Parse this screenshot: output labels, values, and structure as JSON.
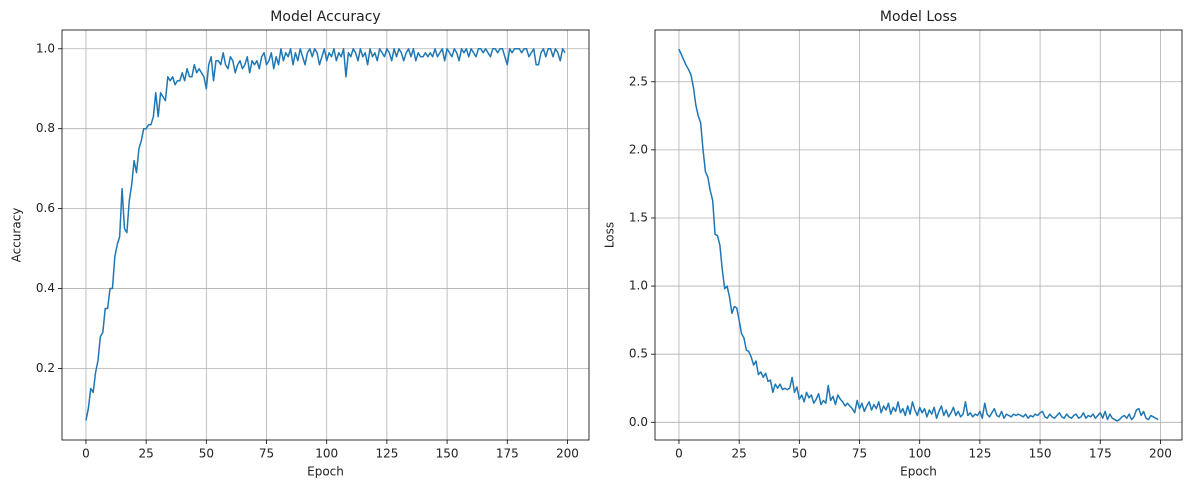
{
  "chart_data": [
    {
      "type": "line",
      "title": "Model Accuracy",
      "xlabel": "Epoch",
      "ylabel": "Accuracy",
      "color": "#1f77b4",
      "grid": true,
      "xlim": [
        -9.95,
        208.95
      ],
      "ylim": [
        0.021,
        1.047
      ],
      "xticks": [
        0,
        25,
        50,
        75,
        100,
        125,
        150,
        175,
        200
      ],
      "yticks": [
        0.2,
        0.4,
        0.6,
        0.8,
        {
          "value": 1,
          "label": "1.0"
        }
      ],
      "x": [
        0,
        1,
        2,
        3,
        4,
        5,
        6,
        7,
        8,
        9,
        10,
        11,
        12,
        13,
        14,
        15,
        16,
        17,
        18,
        19,
        20,
        21,
        22,
        23,
        24,
        25,
        26,
        27,
        28,
        29,
        30,
        31,
        32,
        33,
        34,
        35,
        36,
        37,
        38,
        39,
        40,
        41,
        42,
        43,
        44,
        45,
        46,
        47,
        48,
        49,
        50,
        51,
        52,
        53,
        54,
        55,
        56,
        57,
        58,
        59,
        60,
        61,
        62,
        63,
        64,
        65,
        66,
        67,
        68,
        69,
        70,
        71,
        72,
        73,
        74,
        75,
        76,
        77,
        78,
        79,
        80,
        81,
        82,
        83,
        84,
        85,
        86,
        87,
        88,
        89,
        90,
        91,
        92,
        93,
        94,
        95,
        96,
        97,
        98,
        99,
        100,
        101,
        102,
        103,
        104,
        105,
        106,
        107,
        108,
        109,
        110,
        111,
        112,
        113,
        114,
        115,
        116,
        117,
        118,
        119,
        120,
        121,
        122,
        123,
        124,
        125,
        126,
        127,
        128,
        129,
        130,
        131,
        132,
        133,
        134,
        135,
        136,
        137,
        138,
        139,
        140,
        141,
        142,
        143,
        144,
        145,
        146,
        147,
        148,
        149,
        150,
        151,
        152,
        153,
        154,
        155,
        156,
        157,
        158,
        159,
        160,
        161,
        162,
        163,
        164,
        165,
        166,
        167,
        168,
        169,
        170,
        171,
        172,
        173,
        174,
        175,
        176,
        177,
        178,
        179,
        180,
        181,
        182,
        183,
        184,
        185,
        186,
        187,
        188,
        189,
        190,
        191,
        192,
        193,
        194,
        195,
        196,
        197,
        198,
        199
      ],
      "values": [
        0.07,
        0.1,
        0.15,
        0.14,
        0.19,
        0.22,
        0.28,
        0.29,
        0.35,
        0.35,
        0.4,
        0.4,
        0.48,
        0.51,
        0.53,
        0.65,
        0.55,
        0.54,
        0.62,
        0.66,
        0.72,
        0.69,
        0.75,
        0.77,
        0.8,
        0.8,
        0.81,
        0.81,
        0.83,
        0.89,
        0.83,
        0.89,
        0.88,
        0.87,
        0.93,
        0.92,
        0.93,
        0.91,
        0.92,
        0.92,
        0.94,
        0.92,
        0.95,
        0.93,
        0.93,
        0.96,
        0.94,
        0.95,
        0.94,
        0.93,
        0.9,
        0.96,
        0.98,
        0.92,
        0.97,
        0.97,
        0.96,
        0.99,
        0.96,
        0.95,
        0.98,
        0.97,
        0.94,
        0.96,
        0.97,
        0.95,
        0.96,
        0.98,
        0.94,
        0.97,
        0.96,
        0.97,
        0.95,
        0.98,
        0.99,
        0.96,
        0.97,
        0.99,
        0.95,
        0.98,
        0.96,
        1.0,
        0.97,
        0.99,
        0.98,
        1.0,
        0.96,
        0.99,
        0.97,
        1.0,
        0.98,
        0.96,
        0.99,
        1.0,
        0.98,
        1.0,
        0.99,
        0.96,
        0.98,
        1.0,
        0.97,
        0.99,
        0.98,
        1.0,
        0.97,
        0.99,
        0.98,
        1.0,
        0.93,
        0.99,
        0.98,
        1.0,
        0.99,
        0.97,
        1.0,
        0.98,
        0.99,
        0.96,
        1.0,
        0.98,
        0.99,
        0.97,
        1.0,
        0.99,
        0.98,
        1.0,
        0.99,
        0.97,
        1.0,
        0.98,
        1.0,
        0.99,
        0.97,
        0.99,
        1.0,
        0.98,
        1.0,
        0.97,
        0.99,
        0.98,
        0.98,
        0.99,
        0.98,
        0.99,
        0.98,
        1.0,
        0.98,
        0.99,
        1.0,
        0.97,
        1.0,
        0.99,
        0.98,
        1.0,
        0.99,
        0.97,
        1.0,
        0.99,
        1.0,
        0.98,
        1.0,
        0.99,
        0.98,
        1.0,
        1.0,
        0.99,
        1.0,
        0.99,
        0.98,
        1.0,
        1.0,
        0.99,
        1.0,
        1.0,
        0.98,
        0.96,
        1.0,
        0.99,
        1.0,
        1.0,
        1.0,
        0.99,
        1.0,
        1.0,
        0.98,
        0.99,
        1.0,
        0.96,
        0.96,
        0.99,
        1.0,
        0.98,
        1.0,
        1.0,
        0.98,
        1.0,
        0.99,
        0.97,
        1.0,
        0.99
      ]
    },
    {
      "type": "line",
      "title": "Model Loss",
      "xlabel": "Epoch",
      "ylabel": "Loss",
      "color": "#1f77b4",
      "grid": true,
      "xlim": [
        -9.95,
        208.95
      ],
      "ylim": [
        -0.13,
        2.88
      ],
      "xticks": [
        0,
        25,
        50,
        75,
        100,
        125,
        150,
        175,
        200
      ],
      "yticks": [
        {
          "value": 0,
          "label": "0.0"
        },
        0.5,
        {
          "value": 1,
          "label": "1.0"
        },
        1.5,
        {
          "value": 2,
          "label": "2.0"
        },
        2.5
      ],
      "x": [
        0,
        1,
        2,
        3,
        4,
        5,
        6,
        7,
        8,
        9,
        10,
        11,
        12,
        13,
        14,
        15,
        16,
        17,
        18,
        19,
        20,
        21,
        22,
        23,
        24,
        25,
        26,
        27,
        28,
        29,
        30,
        31,
        32,
        33,
        34,
        35,
        36,
        37,
        38,
        39,
        40,
        41,
        42,
        43,
        44,
        45,
        46,
        47,
        48,
        49,
        50,
        51,
        52,
        53,
        54,
        55,
        56,
        57,
        58,
        59,
        60,
        61,
        62,
        63,
        64,
        65,
        66,
        67,
        68,
        69,
        70,
        71,
        72,
        73,
        74,
        75,
        76,
        77,
        78,
        79,
        80,
        81,
        82,
        83,
        84,
        85,
        86,
        87,
        88,
        89,
        90,
        91,
        92,
        93,
        94,
        95,
        96,
        97,
        98,
        99,
        100,
        101,
        102,
        103,
        104,
        105,
        106,
        107,
        108,
        109,
        110,
        111,
        112,
        113,
        114,
        115,
        116,
        117,
        118,
        119,
        120,
        121,
        122,
        123,
        124,
        125,
        126,
        127,
        128,
        129,
        130,
        131,
        132,
        133,
        134,
        135,
        136,
        137,
        138,
        139,
        140,
        141,
        142,
        143,
        144,
        145,
        146,
        147,
        148,
        149,
        150,
        151,
        152,
        153,
        154,
        155,
        156,
        157,
        158,
        159,
        160,
        161,
        162,
        163,
        164,
        165,
        166,
        167,
        168,
        169,
        170,
        171,
        172,
        173,
        174,
        175,
        176,
        177,
        178,
        179,
        180,
        181,
        182,
        183,
        184,
        185,
        186,
        187,
        188,
        189,
        190,
        191,
        192,
        193,
        194,
        195,
        196,
        197,
        198,
        199
      ],
      "values": [
        2.74,
        2.7,
        2.66,
        2.62,
        2.59,
        2.55,
        2.46,
        2.33,
        2.25,
        2.2,
        2.0,
        1.84,
        1.8,
        1.7,
        1.63,
        1.38,
        1.37,
        1.3,
        1.12,
        0.98,
        1.0,
        0.92,
        0.8,
        0.85,
        0.84,
        0.75,
        0.65,
        0.62,
        0.53,
        0.52,
        0.48,
        0.42,
        0.45,
        0.35,
        0.37,
        0.33,
        0.36,
        0.3,
        0.31,
        0.22,
        0.28,
        0.25,
        0.28,
        0.24,
        0.25,
        0.24,
        0.25,
        0.33,
        0.22,
        0.26,
        0.17,
        0.2,
        0.15,
        0.22,
        0.18,
        0.2,
        0.14,
        0.17,
        0.21,
        0.13,
        0.16,
        0.14,
        0.27,
        0.16,
        0.19,
        0.13,
        0.2,
        0.17,
        0.15,
        0.12,
        0.14,
        0.12,
        0.1,
        0.07,
        0.16,
        0.1,
        0.14,
        0.08,
        0.12,
        0.15,
        0.09,
        0.13,
        0.1,
        0.15,
        0.07,
        0.12,
        0.09,
        0.14,
        0.06,
        0.11,
        0.08,
        0.15,
        0.07,
        0.1,
        0.05,
        0.12,
        0.06,
        0.15,
        0.09,
        0.05,
        0.11,
        0.07,
        0.1,
        0.04,
        0.09,
        0.06,
        0.11,
        0.03,
        0.08,
        0.12,
        0.05,
        0.09,
        0.04,
        0.07,
        0.11,
        0.05,
        0.08,
        0.04,
        0.06,
        0.15,
        0.05,
        0.07,
        0.04,
        0.06,
        0.05,
        0.08,
        0.03,
        0.14,
        0.06,
        0.04,
        0.07,
        0.1,
        0.05,
        0.04,
        0.08,
        0.03,
        0.06,
        0.05,
        0.04,
        0.06,
        0.05,
        0.06,
        0.05,
        0.04,
        0.06,
        0.03,
        0.05,
        0.04,
        0.06,
        0.05,
        0.07,
        0.08,
        0.04,
        0.03,
        0.06,
        0.04,
        0.03,
        0.05,
        0.07,
        0.04,
        0.03,
        0.06,
        0.04,
        0.03,
        0.05,
        0.06,
        0.03,
        0.04,
        0.07,
        0.03,
        0.05,
        0.04,
        0.06,
        0.03,
        0.05,
        0.07,
        0.03,
        0.08,
        0.02,
        0.06,
        0.03,
        0.02,
        0.01,
        0.02,
        0.04,
        0.05,
        0.03,
        0.06,
        0.02,
        0.04,
        0.09,
        0.1,
        0.05,
        0.08,
        0.03,
        0.02,
        0.05,
        0.04,
        0.03,
        0.02
      ]
    }
  ]
}
